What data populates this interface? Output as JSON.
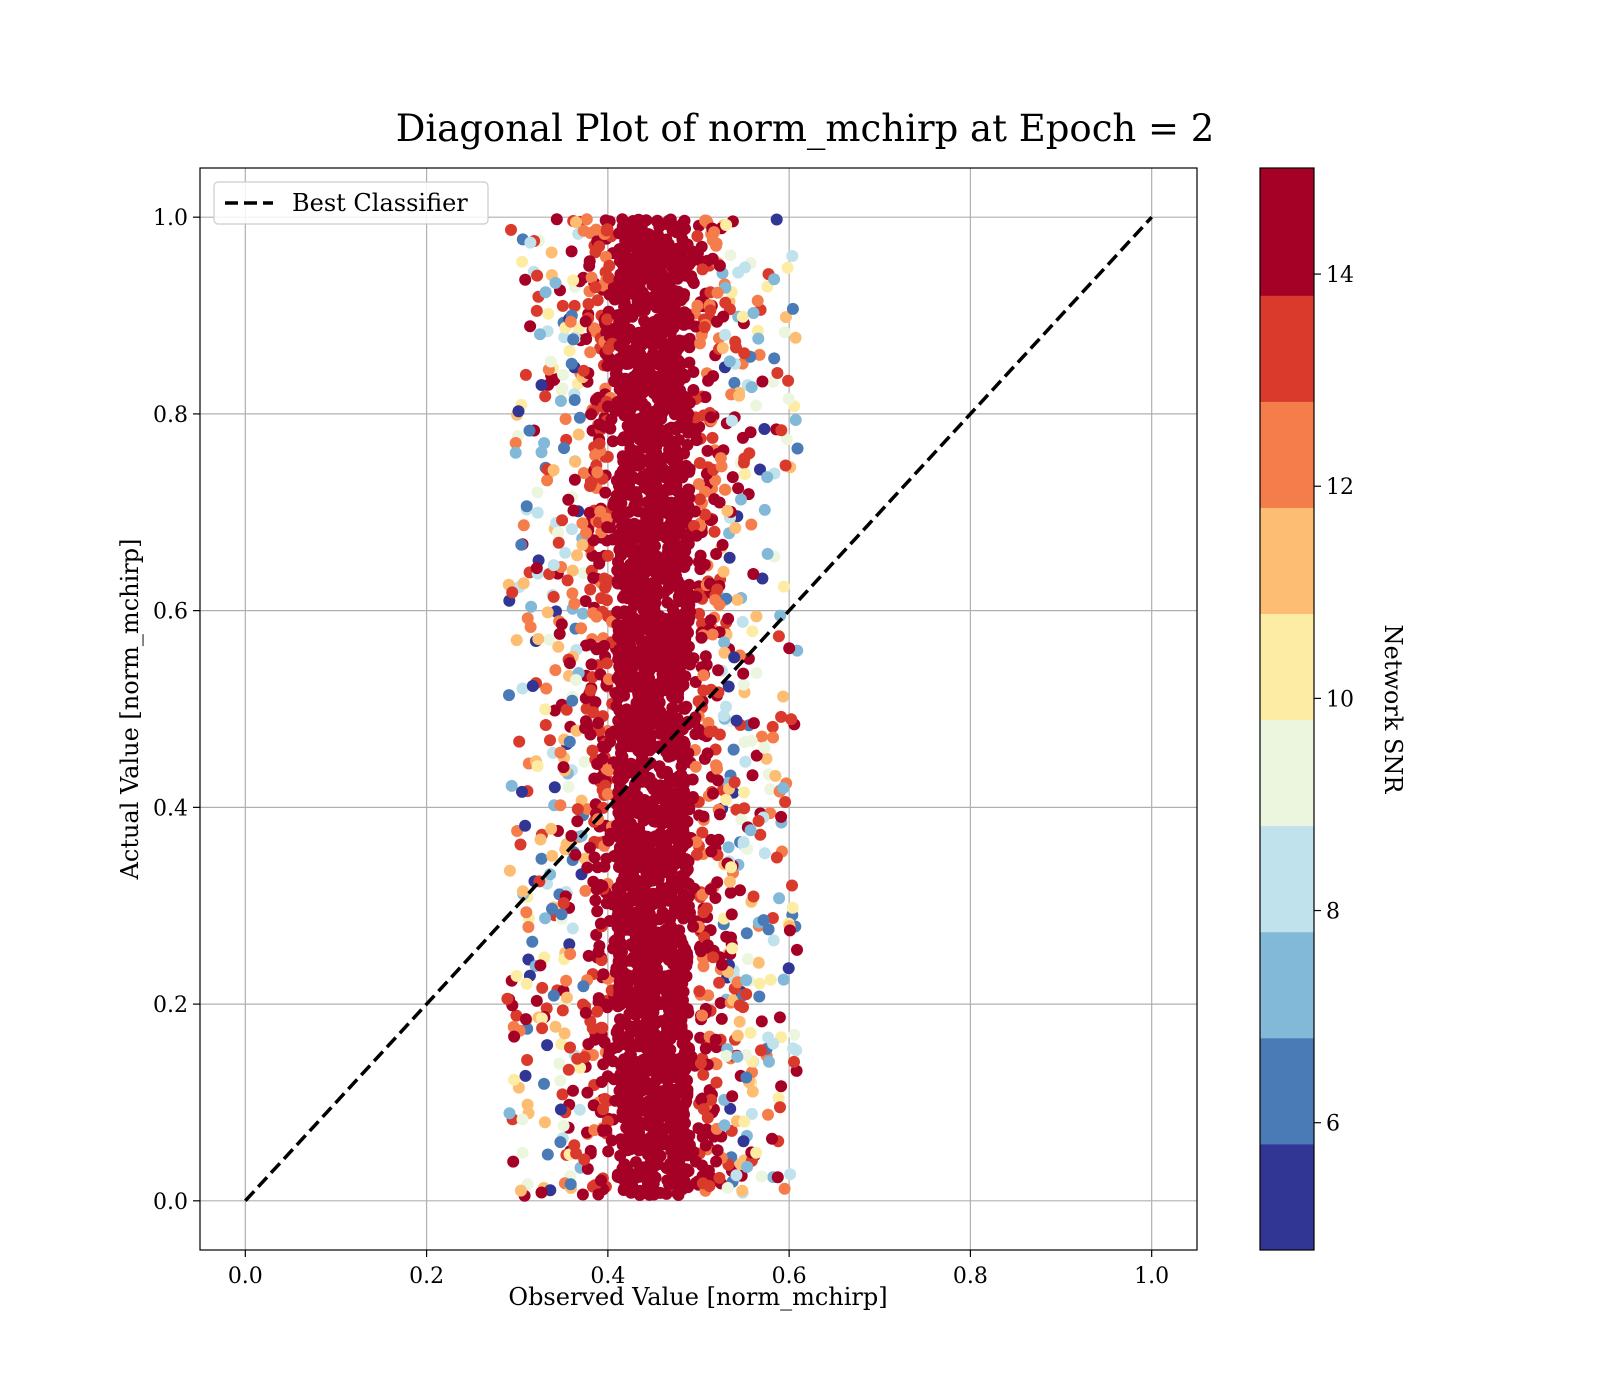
{
  "chart_data": {
    "type": "scatter",
    "title": "Diagonal Plot of norm_mchirp at Epoch = 2",
    "xlabel": "Observed Value [norm_mchirp]",
    "ylabel": "Actual Value [norm_mchirp]",
    "xlim": [
      -0.05,
      1.05
    ],
    "ylim": [
      -0.05,
      1.05
    ],
    "x_ticks": [
      0.0,
      0.2,
      0.4,
      0.6,
      0.8,
      1.0
    ],
    "y_ticks": [
      0.0,
      0.2,
      0.4,
      0.6,
      0.8,
      1.0
    ],
    "x_tick_labels": [
      "0.0",
      "0.2",
      "0.4",
      "0.6",
      "0.8",
      "1.0"
    ],
    "y_tick_labels": [
      "0.0",
      "0.2",
      "0.4",
      "0.6",
      "0.8",
      "1.0"
    ],
    "grid": true,
    "legend": {
      "placement": "upper-left",
      "entries": [
        {
          "label": "Best Classifier",
          "style": "dashed",
          "color": "#000000"
        }
      ]
    },
    "reference_line": {
      "name": "Best Classifier",
      "x": [
        0.0,
        1.0
      ],
      "y": [
        0.0,
        1.0
      ],
      "style": "dashed"
    },
    "points": {
      "x_center": 0.45,
      "x_core_halfwidth": 0.04,
      "x_spread_max": 0.16,
      "y_range": [
        0.005,
        0.998
      ],
      "dominant_color": "#a50026",
      "color_by": "Network SNR"
    },
    "colorbar": {
      "label": "Network SNR",
      "range": [
        4.8,
        15.0
      ],
      "ticks": [
        6,
        8,
        10,
        12,
        14
      ],
      "tick_labels": [
        "6",
        "8",
        "10",
        "12",
        "14"
      ],
      "levels": [
        {
          "from": 4.8,
          "to": 5.8,
          "color": "#313695"
        },
        {
          "from": 5.8,
          "to": 6.8,
          "color": "#4a7bb7"
        },
        {
          "from": 6.8,
          "to": 7.8,
          "color": "#82b8d8"
        },
        {
          "from": 7.8,
          "to": 8.8,
          "color": "#c0e2ec"
        },
        {
          "from": 8.8,
          "to": 9.8,
          "color": "#ecf6df"
        },
        {
          "from": 9.8,
          "to": 10.8,
          "color": "#fdeda4"
        },
        {
          "from": 10.8,
          "to": 11.8,
          "color": "#fdbd72"
        },
        {
          "from": 11.8,
          "to": 12.8,
          "color": "#f57d4b"
        },
        {
          "from": 12.8,
          "to": 13.8,
          "color": "#d93a2c"
        },
        {
          "from": 13.8,
          "to": 15.0,
          "color": "#a50026"
        }
      ]
    }
  }
}
